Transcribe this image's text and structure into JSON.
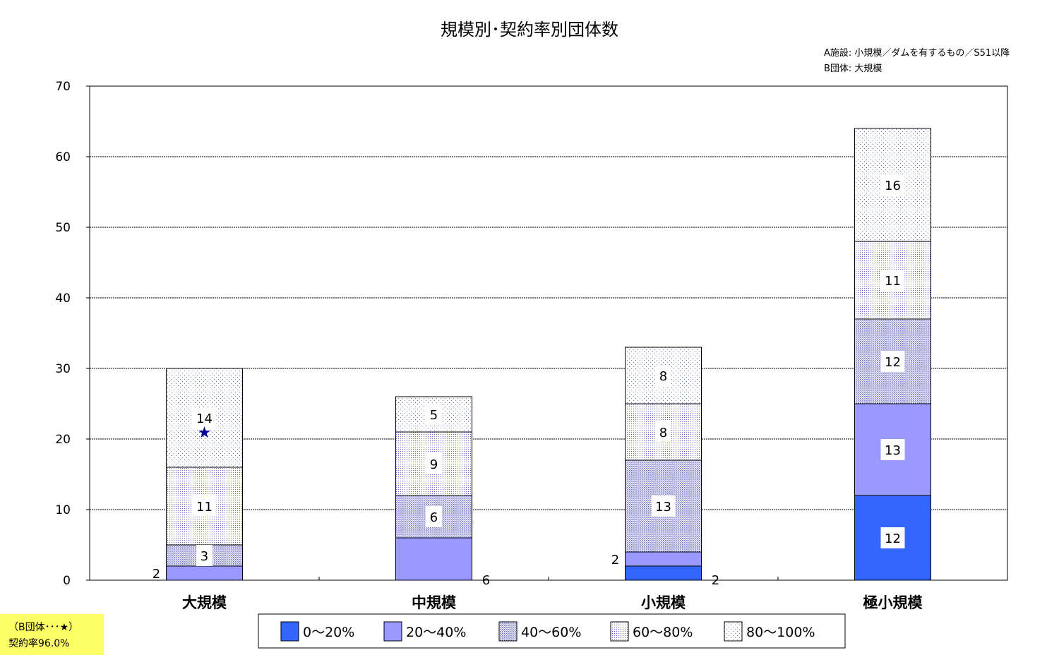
{
  "chart_data": {
    "type": "bar",
    "stacked": true,
    "title": "規模別･契約率別団体数",
    "notes": [
      "A施設: 小規模／ダムを有するもの／S51以降",
      "B団体: 大規模"
    ],
    "categories": [
      "大規模",
      "中規模",
      "小規模",
      "極小規模"
    ],
    "ylim": [
      0,
      70
    ],
    "yticks": [
      0,
      10,
      20,
      30,
      40,
      50,
      60,
      70
    ],
    "grid": true,
    "legend_position": "bottom",
    "series": [
      {
        "name": "0～20%",
        "values": [
          0,
          0,
          2,
          12
        ],
        "color": "#3366ff",
        "pattern": "solid"
      },
      {
        "name": "20～40%",
        "values": [
          2,
          6,
          2,
          13
        ],
        "color": "#9999ff",
        "pattern": "solid"
      },
      {
        "name": "40～60%",
        "values": [
          3,
          6,
          13,
          12
        ],
        "color": "#7777cc",
        "pattern": "dense"
      },
      {
        "name": "60～80%",
        "values": [
          11,
          9,
          8,
          11
        ],
        "color": "#6666cc",
        "pattern": "medium"
      },
      {
        "name": "80～100%",
        "values": [
          14,
          5,
          8,
          16
        ],
        "color": "#6677cc",
        "pattern": "sparse"
      }
    ],
    "data_labels": [
      [
        null,
        "2",
        "3",
        "11",
        "14"
      ],
      [
        null,
        "6",
        "6",
        "9",
        "5"
      ],
      [
        "2",
        "2",
        "13",
        "8",
        "8"
      ],
      [
        "12",
        "13",
        "12",
        "11",
        "16"
      ]
    ],
    "outside_labels": [
      [
        "right",
        "left",
        "none",
        "none",
        "none"
      ],
      [
        "none",
        "right",
        "none",
        "none",
        "none"
      ],
      [
        "right",
        "left",
        "none",
        "none",
        "none"
      ],
      [
        "none",
        "none",
        "none",
        "none",
        "none"
      ]
    ],
    "marker": {
      "category_index": 0,
      "value": 21,
      "symbol": "★",
      "color": "#000099"
    }
  },
  "footnote": {
    "line1": "（B団体･･･★）",
    "line2": "契約率96.0%"
  }
}
